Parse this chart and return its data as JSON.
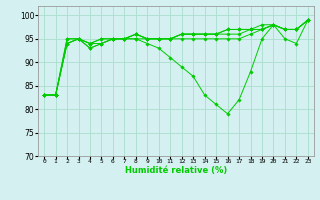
{
  "xlabel": "Humidité relative (%)",
  "x": [
    0,
    1,
    2,
    3,
    4,
    5,
    6,
    7,
    8,
    9,
    10,
    11,
    12,
    13,
    14,
    15,
    16,
    17,
    18,
    19,
    20,
    21,
    22,
    23
  ],
  "series": [
    [
      83,
      83,
      94,
      95,
      94,
      94,
      95,
      95,
      95,
      94,
      93,
      91,
      89,
      87,
      83,
      81,
      79,
      82,
      88,
      95,
      98,
      95,
      94,
      99
    ],
    [
      83,
      83,
      94,
      95,
      93,
      94,
      95,
      95,
      95,
      95,
      95,
      95,
      95,
      95,
      95,
      95,
      95,
      95,
      96,
      97,
      98,
      97,
      97,
      99
    ],
    [
      83,
      83,
      94,
      95,
      93,
      94,
      95,
      95,
      96,
      95,
      95,
      95,
      96,
      96,
      96,
      96,
      96,
      96,
      97,
      97,
      98,
      97,
      97,
      99
    ],
    [
      83,
      83,
      95,
      95,
      94,
      95,
      95,
      95,
      96,
      95,
      95,
      95,
      96,
      96,
      96,
      96,
      97,
      97,
      97,
      97,
      98,
      97,
      97,
      99
    ],
    [
      83,
      83,
      95,
      95,
      94,
      95,
      95,
      95,
      96,
      95,
      95,
      95,
      96,
      96,
      96,
      96,
      97,
      97,
      97,
      98,
      98,
      97,
      97,
      99
    ]
  ],
  "line_color": "#00cc00",
  "marker": "D",
  "marker_size": 1.8,
  "bg_color": "#d4f0f0",
  "grid_color": "#aaddcc",
  "ylim": [
    70,
    102
  ],
  "yticks": [
    70,
    75,
    80,
    85,
    90,
    95,
    100
  ],
  "figsize": [
    3.2,
    2.0
  ],
  "dpi": 100
}
